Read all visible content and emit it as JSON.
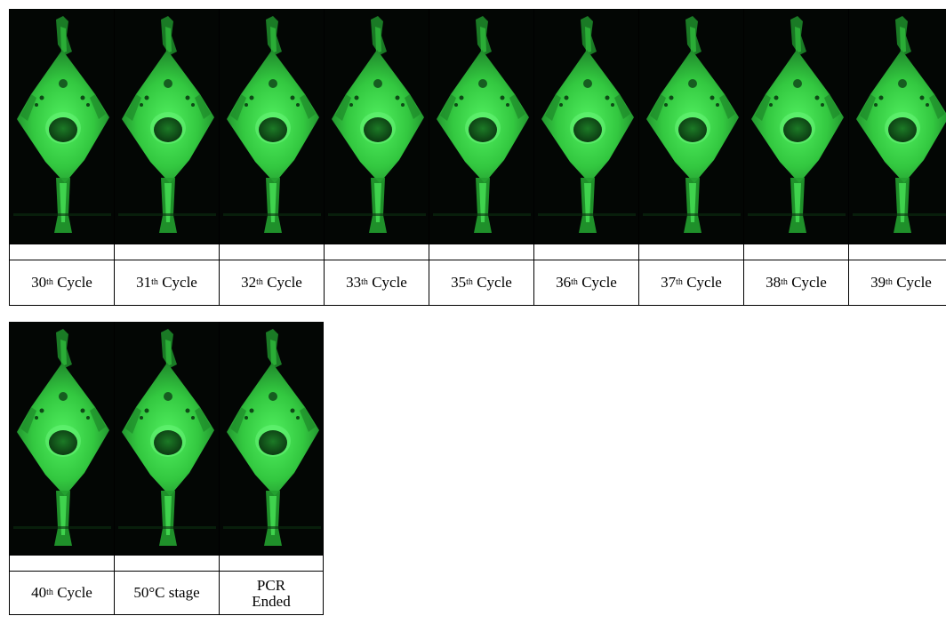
{
  "rows": [
    {
      "cells": [
        {
          "number": "30",
          "suffix": "th",
          "word": "Cycle"
        },
        {
          "number": "31",
          "suffix": "th",
          "word": "Cycle"
        },
        {
          "number": "32",
          "suffix": "th",
          "word": "Cycle"
        },
        {
          "number": "33",
          "suffix": "th",
          "word": "Cycle"
        },
        {
          "number": "35",
          "suffix": "th",
          "word": "Cycle"
        },
        {
          "number": "36",
          "suffix": "th",
          "word": "Cycle"
        },
        {
          "number": "37",
          "suffix": "th",
          "word": "Cycle"
        },
        {
          "number": "38",
          "suffix": "th",
          "word": "Cycle"
        },
        {
          "number": "39",
          "suffix": "th",
          "word": "Cycle"
        }
      ]
    },
    {
      "cells": [
        {
          "number": "40",
          "suffix": "th",
          "word": "Cycle"
        },
        {
          "text": "50°C stage"
        },
        {
          "line1": "PCR",
          "line2": "Ended"
        }
      ]
    }
  ],
  "colors": {
    "glow": "#3ddc4a",
    "glow_dark": "#1e8a2a",
    "background": "#030604"
  }
}
